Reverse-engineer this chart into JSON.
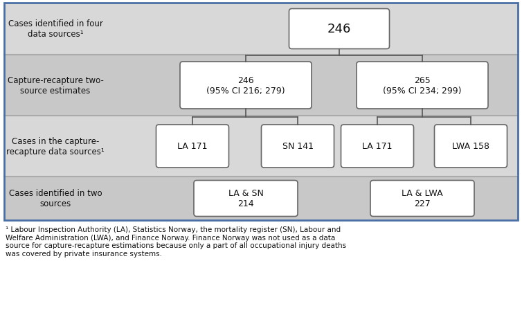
{
  "fig_w": 7.54,
  "fig_h": 4.56,
  "dpi": 100,
  "diagram_bg_light": "#d8d8d8",
  "diagram_bg_dark": "#c8c8c8",
  "box_fc": "#ffffff",
  "box_ec": "#666666",
  "line_color": "#555555",
  "outer_border_color": "#4a6fa5",
  "label_color": "#111111",
  "footnote_color": "#111111",
  "row_labels": [
    "Cases identified in four\ndata sources¹",
    "Capture-recapture two-\nsource estimates",
    "Cases in the capture-\nrecapture data sources¹",
    "Cases identified in two\nsources"
  ],
  "row1_box_text": "246",
  "row2_boxes": [
    {
      "text": "246\n(95% CI 216; 279)"
    },
    {
      "text": "265\n(95% CI 234; 299)"
    }
  ],
  "row3_boxes": [
    {
      "text": "LA 171"
    },
    {
      "text": "SN 141"
    },
    {
      "text": "LA 171"
    },
    {
      "text": "LWA 158"
    }
  ],
  "row4_boxes": [
    {
      "text": "LA & SN\n214"
    },
    {
      "text": "LA & LWA\n227"
    }
  ],
  "footnote": "¹ Labour Inspection Authority (LA), Statistics Norway, the mortality register (SN), Labour and\nWelfare Administration (LWA), and Finance Norway. Finance Norway was not used as a data\nsource for capture-recapture estimations because only a part of all occupational injury deaths\nwas covered by private insurance systems."
}
